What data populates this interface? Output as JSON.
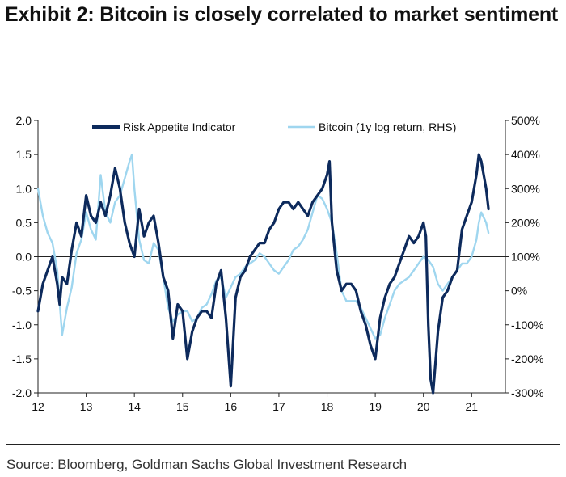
{
  "title": "Exhibit 2: Bitcoin is closely correlated to market sentiment",
  "source": "Source: Bloomberg, Goldman Sachs Global Investment Research",
  "colors": {
    "series_rai": "#0d2a5c",
    "series_btc": "#9fd6ef",
    "axis": "#222222",
    "text": "#111111"
  },
  "chart_data": {
    "type": "line",
    "title": "",
    "xlabel": "",
    "ylabel_left": "",
    "ylabel_right": "",
    "xlim": [
      12,
      21.7
    ],
    "ylim_left": [
      -2.0,
      2.0
    ],
    "ylim_right": [
      -300,
      500
    ],
    "x_ticks": [
      12,
      13,
      14,
      15,
      16,
      17,
      18,
      19,
      20,
      21
    ],
    "x_tick_labels": [
      "12",
      "13",
      "14",
      "15",
      "16",
      "17",
      "18",
      "19",
      "20",
      "21"
    ],
    "y_left_ticks": [
      -2.0,
      -1.5,
      -1.0,
      -0.5,
      0.0,
      0.5,
      1.0,
      1.5,
      2.0
    ],
    "y_left_tick_labels": [
      "-2.0",
      "-1.5",
      "-1.0",
      "-0.5",
      "0.0",
      "0.5",
      "1.0",
      "1.5",
      "2.0"
    ],
    "y_right_ticks": [
      -300,
      -200,
      -100,
      0,
      100,
      200,
      300,
      400,
      500
    ],
    "y_right_tick_labels": [
      "-300%",
      "-200%",
      "-100%",
      "0%",
      "100%",
      "200%",
      "300%",
      "400%",
      "500%"
    ],
    "zero_line": 0.0,
    "legend_position": "top",
    "series": [
      {
        "name": "Risk Appetite Indicator",
        "axis": "left",
        "x": [
          12.0,
          12.1,
          12.2,
          12.3,
          12.4,
          12.45,
          12.5,
          12.6,
          12.7,
          12.8,
          12.9,
          13.0,
          13.1,
          13.2,
          13.3,
          13.4,
          13.5,
          13.6,
          13.7,
          13.8,
          13.9,
          14.0,
          14.1,
          14.2,
          14.3,
          14.4,
          14.5,
          14.6,
          14.7,
          14.8,
          14.9,
          15.0,
          15.1,
          15.2,
          15.3,
          15.4,
          15.5,
          15.6,
          15.7,
          15.8,
          15.9,
          16.0,
          16.1,
          16.2,
          16.3,
          16.4,
          16.5,
          16.6,
          16.7,
          16.8,
          16.9,
          17.0,
          17.1,
          17.2,
          17.3,
          17.4,
          17.5,
          17.6,
          17.7,
          17.8,
          17.9,
          18.0,
          18.05,
          18.1,
          18.2,
          18.3,
          18.4,
          18.5,
          18.6,
          18.7,
          18.8,
          18.9,
          19.0,
          19.1,
          19.2,
          19.3,
          19.4,
          19.5,
          19.6,
          19.7,
          19.8,
          19.9,
          20.0,
          20.05,
          20.1,
          20.15,
          20.2,
          20.3,
          20.4,
          20.5,
          20.6,
          20.7,
          20.8,
          20.9,
          21.0,
          21.1,
          21.15,
          21.2,
          21.3,
          21.35
        ],
        "y": [
          -0.8,
          -0.4,
          -0.2,
          0.0,
          -0.4,
          -0.7,
          -0.3,
          -0.4,
          0.1,
          0.5,
          0.3,
          0.9,
          0.6,
          0.5,
          0.8,
          0.6,
          0.9,
          1.3,
          1.0,
          0.5,
          0.2,
          0.0,
          0.7,
          0.3,
          0.5,
          0.6,
          0.2,
          -0.3,
          -0.5,
          -1.2,
          -0.7,
          -0.8,
          -1.5,
          -1.1,
          -0.9,
          -0.8,
          -0.8,
          -0.9,
          -0.4,
          -0.2,
          -0.9,
          -1.9,
          -0.6,
          -0.3,
          -0.2,
          0.0,
          0.1,
          0.2,
          0.2,
          0.4,
          0.5,
          0.7,
          0.8,
          0.8,
          0.7,
          0.8,
          0.7,
          0.6,
          0.8,
          0.9,
          1.0,
          1.2,
          1.4,
          0.5,
          -0.2,
          -0.5,
          -0.4,
          -0.4,
          -0.5,
          -0.8,
          -1.0,
          -1.3,
          -1.5,
          -0.9,
          -0.6,
          -0.4,
          -0.3,
          -0.1,
          0.1,
          0.3,
          0.2,
          0.3,
          0.5,
          0.3,
          -1.0,
          -1.8,
          -2.0,
          -1.1,
          -0.6,
          -0.5,
          -0.3,
          -0.2,
          0.4,
          0.6,
          0.8,
          1.2,
          1.5,
          1.4,
          1.0,
          0.7
        ]
      },
      {
        "name": "Bitcoin (1y log return, RHS)",
        "axis": "right",
        "x": [
          12.0,
          12.1,
          12.2,
          12.3,
          12.4,
          12.5,
          12.6,
          12.7,
          12.8,
          12.9,
          13.0,
          13.1,
          13.2,
          13.3,
          13.4,
          13.5,
          13.6,
          13.7,
          13.8,
          13.9,
          13.95,
          14.0,
          14.1,
          14.2,
          14.3,
          14.4,
          14.5,
          14.6,
          14.7,
          14.8,
          14.9,
          15.0,
          15.1,
          15.2,
          15.3,
          15.4,
          15.5,
          15.6,
          15.7,
          15.8,
          15.9,
          16.0,
          16.1,
          16.2,
          16.3,
          16.4,
          16.5,
          16.6,
          16.7,
          16.8,
          16.9,
          17.0,
          17.1,
          17.2,
          17.3,
          17.4,
          17.5,
          17.6,
          17.7,
          17.8,
          17.9,
          18.0,
          18.1,
          18.2,
          18.3,
          18.4,
          18.5,
          18.6,
          18.7,
          18.8,
          18.9,
          19.0,
          19.1,
          19.2,
          19.3,
          19.4,
          19.5,
          19.6,
          19.7,
          19.8,
          19.9,
          20.0,
          20.1,
          20.2,
          20.3,
          20.4,
          20.5,
          20.6,
          20.7,
          20.8,
          20.9,
          21.0,
          21.1,
          21.15,
          21.2,
          21.3,
          21.35
        ],
        "y": [
          300,
          220,
          170,
          140,
          60,
          -130,
          -50,
          10,
          110,
          150,
          230,
          180,
          150,
          340,
          230,
          200,
          260,
          280,
          330,
          380,
          400,
          300,
          150,
          90,
          80,
          140,
          120,
          40,
          -50,
          -90,
          -70,
          -60,
          -60,
          -90,
          -80,
          -50,
          -40,
          -10,
          30,
          40,
          -20,
          10,
          40,
          50,
          70,
          80,
          90,
          110,
          100,
          80,
          60,
          50,
          70,
          90,
          120,
          130,
          150,
          180,
          230,
          280,
          270,
          240,
          200,
          110,
          0,
          -30,
          -30,
          -30,
          -50,
          -80,
          -110,
          -140,
          -130,
          -80,
          -40,
          0,
          20,
          30,
          40,
          60,
          80,
          100,
          90,
          70,
          20,
          0,
          20,
          40,
          60,
          80,
          80,
          100,
          150,
          200,
          230,
          200,
          170
        ]
      }
    ]
  }
}
